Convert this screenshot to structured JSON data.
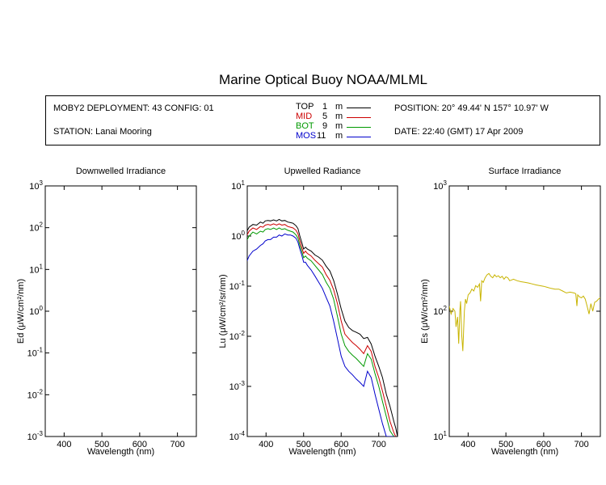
{
  "title": "Marine Optical Buoy NOAA/MLML",
  "info": {
    "deployment": "MOBY2 DEPLOYMENT: 43 CONFIG: 01",
    "station": "STATION: Lanai Mooring",
    "position": "POSITION: 20° 49.44' N   157° 10.97' W",
    "date": "DATE: 22:40 (GMT) 17 Apr 2009"
  },
  "legend": [
    {
      "name": "TOP",
      "depth": "1",
      "unit": "m",
      "color": "#000000"
    },
    {
      "name": "MID",
      "depth": "5",
      "unit": "m",
      "color": "#cc0000"
    },
    {
      "name": "BOT",
      "depth": "9",
      "unit": "m",
      "color": "#009900"
    },
    {
      "name": "MOS",
      "depth": "11",
      "unit": "m",
      "color": "#0000cc"
    }
  ],
  "chart_data": [
    {
      "type": "line",
      "title": "Downwelled Irradiance",
      "xlabel": "Wavelength (nm)",
      "ylabel": "Ed  (μW/cm²/nm)",
      "xlim": [
        350,
        750
      ],
      "ylim": [
        0.001,
        1000
      ],
      "yscale": "log",
      "xticks": [
        400,
        500,
        600,
        700
      ],
      "yticks": [
        {
          "value": 0.001,
          "base": "10",
          "exp": "-3"
        },
        {
          "value": 0.01,
          "base": "10",
          "exp": "-2"
        },
        {
          "value": 0.1,
          "base": "10",
          "exp": "-1"
        },
        {
          "value": 1,
          "base": "10",
          "exp": "0"
        },
        {
          "value": 10,
          "base": "10",
          "exp": "1"
        },
        {
          "value": 100,
          "base": "10",
          "exp": "2"
        },
        {
          "value": 1000,
          "base": "10",
          "exp": "3"
        }
      ],
      "series": []
    },
    {
      "type": "line",
      "title": "Upwelled Radiance",
      "xlabel": "Wavelength (nm)",
      "ylabel": "Lu  (μW/cm²/sr/nm)",
      "xlim": [
        350,
        750
      ],
      "ylim": [
        0.0001,
        10
      ],
      "yscale": "log",
      "xticks": [
        400,
        500,
        600,
        700
      ],
      "yticks": [
        {
          "value": 0.0001,
          "base": "10",
          "exp": "-4"
        },
        {
          "value": 0.001,
          "base": "10",
          "exp": "-3"
        },
        {
          "value": 0.01,
          "base": "10",
          "exp": "-2"
        },
        {
          "value": 0.1,
          "base": "10",
          "exp": "-1"
        },
        {
          "value": 1,
          "base": "10",
          "exp": "0"
        },
        {
          "value": 10,
          "base": "10",
          "exp": "1"
        }
      ],
      "series": [
        {
          "name": "TOP",
          "color": "#000000",
          "x": [
            348,
            355,
            365,
            375,
            385,
            392,
            398,
            405,
            412,
            420,
            428,
            435,
            442,
            450,
            458,
            465,
            472,
            480,
            485,
            490,
            495,
            500,
            505,
            510,
            520,
            530,
            540,
            550,
            560,
            570,
            580,
            590,
            600,
            610,
            620,
            630,
            640,
            650,
            660,
            670,
            680,
            690,
            700,
            710,
            720,
            730,
            740,
            745,
            750
          ],
          "y": [
            1.2,
            1.5,
            1.7,
            1.65,
            1.9,
            1.8,
            2.0,
            2.05,
            2.0,
            2.1,
            2.0,
            2.15,
            2.0,
            2.05,
            1.9,
            1.85,
            1.8,
            1.6,
            1.4,
            1.0,
            0.75,
            0.55,
            0.6,
            0.55,
            0.5,
            0.42,
            0.38,
            0.33,
            0.25,
            0.2,
            0.13,
            0.07,
            0.035,
            0.02,
            0.015,
            0.013,
            0.012,
            0.011,
            0.009,
            0.0095,
            0.007,
            0.004,
            0.0025,
            0.0015,
            0.0007,
            0.0004,
            0.0002,
            0.00015,
            0.0001
          ]
        },
        {
          "name": "MID",
          "color": "#cc0000",
          "x": [
            348,
            355,
            365,
            375,
            385,
            392,
            398,
            405,
            412,
            420,
            428,
            435,
            442,
            450,
            458,
            465,
            472,
            480,
            485,
            490,
            495,
            500,
            505,
            510,
            520,
            530,
            540,
            550,
            560,
            570,
            580,
            590,
            600,
            610,
            620,
            630,
            640,
            650,
            660,
            670,
            680,
            690,
            700,
            710,
            720,
            730,
            740,
            745
          ],
          "y": [
            1.0,
            1.25,
            1.45,
            1.35,
            1.55,
            1.5,
            1.65,
            1.7,
            1.65,
            1.75,
            1.65,
            1.75,
            1.65,
            1.7,
            1.55,
            1.5,
            1.45,
            1.3,
            1.1,
            0.8,
            0.6,
            0.45,
            0.5,
            0.45,
            0.4,
            0.33,
            0.28,
            0.24,
            0.17,
            0.13,
            0.085,
            0.045,
            0.02,
            0.011,
            0.009,
            0.0075,
            0.0065,
            0.0055,
            0.0045,
            0.0065,
            0.005,
            0.0025,
            0.0015,
            0.0008,
            0.0004,
            0.0002,
            0.00012,
            0.0001
          ]
        },
        {
          "name": "BOT",
          "color": "#009900",
          "x": [
            348,
            355,
            365,
            375,
            385,
            392,
            398,
            405,
            412,
            420,
            428,
            435,
            442,
            450,
            458,
            465,
            472,
            480,
            485,
            490,
            495,
            500,
            505,
            510,
            520,
            530,
            540,
            550,
            560,
            570,
            580,
            590,
            600,
            610,
            620,
            630,
            640,
            650,
            660,
            670,
            680,
            690,
            700,
            710,
            720,
            730,
            740
          ],
          "y": [
            0.8,
            1.0,
            1.2,
            1.1,
            1.25,
            1.2,
            1.35,
            1.4,
            1.35,
            1.45,
            1.35,
            1.45,
            1.35,
            1.4,
            1.3,
            1.25,
            1.2,
            1.05,
            0.9,
            0.65,
            0.5,
            0.37,
            0.4,
            0.36,
            0.32,
            0.26,
            0.21,
            0.17,
            0.12,
            0.09,
            0.055,
            0.025,
            0.011,
            0.0065,
            0.005,
            0.0042,
            0.0036,
            0.003,
            0.0025,
            0.0045,
            0.0035,
            0.0018,
            0.001,
            0.0005,
            0.00025,
            0.00013,
            0.0001
          ]
        },
        {
          "name": "MOS",
          "color": "#0000cc",
          "x": [
            348,
            355,
            365,
            375,
            385,
            392,
            398,
            405,
            412,
            420,
            428,
            435,
            442,
            450,
            458,
            465,
            472,
            480,
            485,
            490,
            495,
            500,
            505,
            510,
            520,
            530,
            540,
            550,
            560,
            570,
            580,
            590,
            600,
            610,
            620,
            630,
            640,
            650,
            660,
            670,
            680,
            690,
            700,
            710,
            720,
            730,
            740
          ],
          "y": [
            0.3,
            0.4,
            0.5,
            0.55,
            0.65,
            0.7,
            0.8,
            0.85,
            0.85,
            0.95,
            0.95,
            1.05,
            1.0,
            1.1,
            1.05,
            1.05,
            1.0,
            0.9,
            0.75,
            0.55,
            0.42,
            0.3,
            0.3,
            0.26,
            0.21,
            0.16,
            0.12,
            0.09,
            0.06,
            0.04,
            0.02,
            0.009,
            0.004,
            0.0025,
            0.002,
            0.0017,
            0.0014,
            0.0012,
            0.001,
            0.002,
            0.0015,
            0.0007,
            0.00035,
            0.00018,
            0.0001,
            0.0001,
            0.0001
          ]
        }
      ]
    },
    {
      "type": "line",
      "title": "Surface Irradiance",
      "xlabel": "Wavelength (nm)",
      "ylabel": "Es  (μW/cm²/nm)",
      "xlim": [
        350,
        750
      ],
      "ylim": [
        10,
        1000
      ],
      "yscale": "log",
      "xticks": [
        400,
        500,
        600,
        700
      ],
      "yticks": [
        {
          "value": 10,
          "base": "10",
          "exp": "1"
        },
        {
          "value": 100,
          "base": "10",
          "exp": "2"
        },
        {
          "value": 1000,
          "base": "10",
          "exp": "3"
        }
      ],
      "series": [
        {
          "name": "Es",
          "color": "#c8b400",
          "x": [
            350,
            355,
            360,
            365,
            368,
            372,
            375,
            378,
            380,
            383,
            386,
            390,
            393,
            396,
            400,
            405,
            410,
            415,
            420,
            425,
            430,
            433,
            436,
            440,
            445,
            450,
            455,
            460,
            465,
            470,
            475,
            480,
            485,
            490,
            495,
            500,
            505,
            510,
            520,
            530,
            540,
            550,
            560,
            570,
            580,
            590,
            600,
            610,
            620,
            630,
            640,
            650,
            660,
            670,
            680,
            685,
            688,
            690,
            695,
            700,
            705,
            710,
            715,
            720,
            725,
            730,
            735,
            740,
            745,
            750
          ],
          "y": [
            110,
            95,
            105,
            100,
            75,
            90,
            55,
            100,
            120,
            65,
            48,
            100,
            125,
            115,
            135,
            140,
            150,
            145,
            160,
            155,
            165,
            120,
            175,
            170,
            185,
            195,
            200,
            190,
            185,
            195,
            188,
            192,
            185,
            190,
            180,
            188,
            185,
            175,
            180,
            175,
            172,
            170,
            168,
            165,
            162,
            160,
            158,
            155,
            152,
            150,
            150,
            145,
            140,
            142,
            140,
            138,
            110,
            135,
            130,
            128,
            132,
            125,
            110,
            95,
            115,
            100,
            118,
            120,
            125,
            128
          ]
        }
      ]
    }
  ]
}
